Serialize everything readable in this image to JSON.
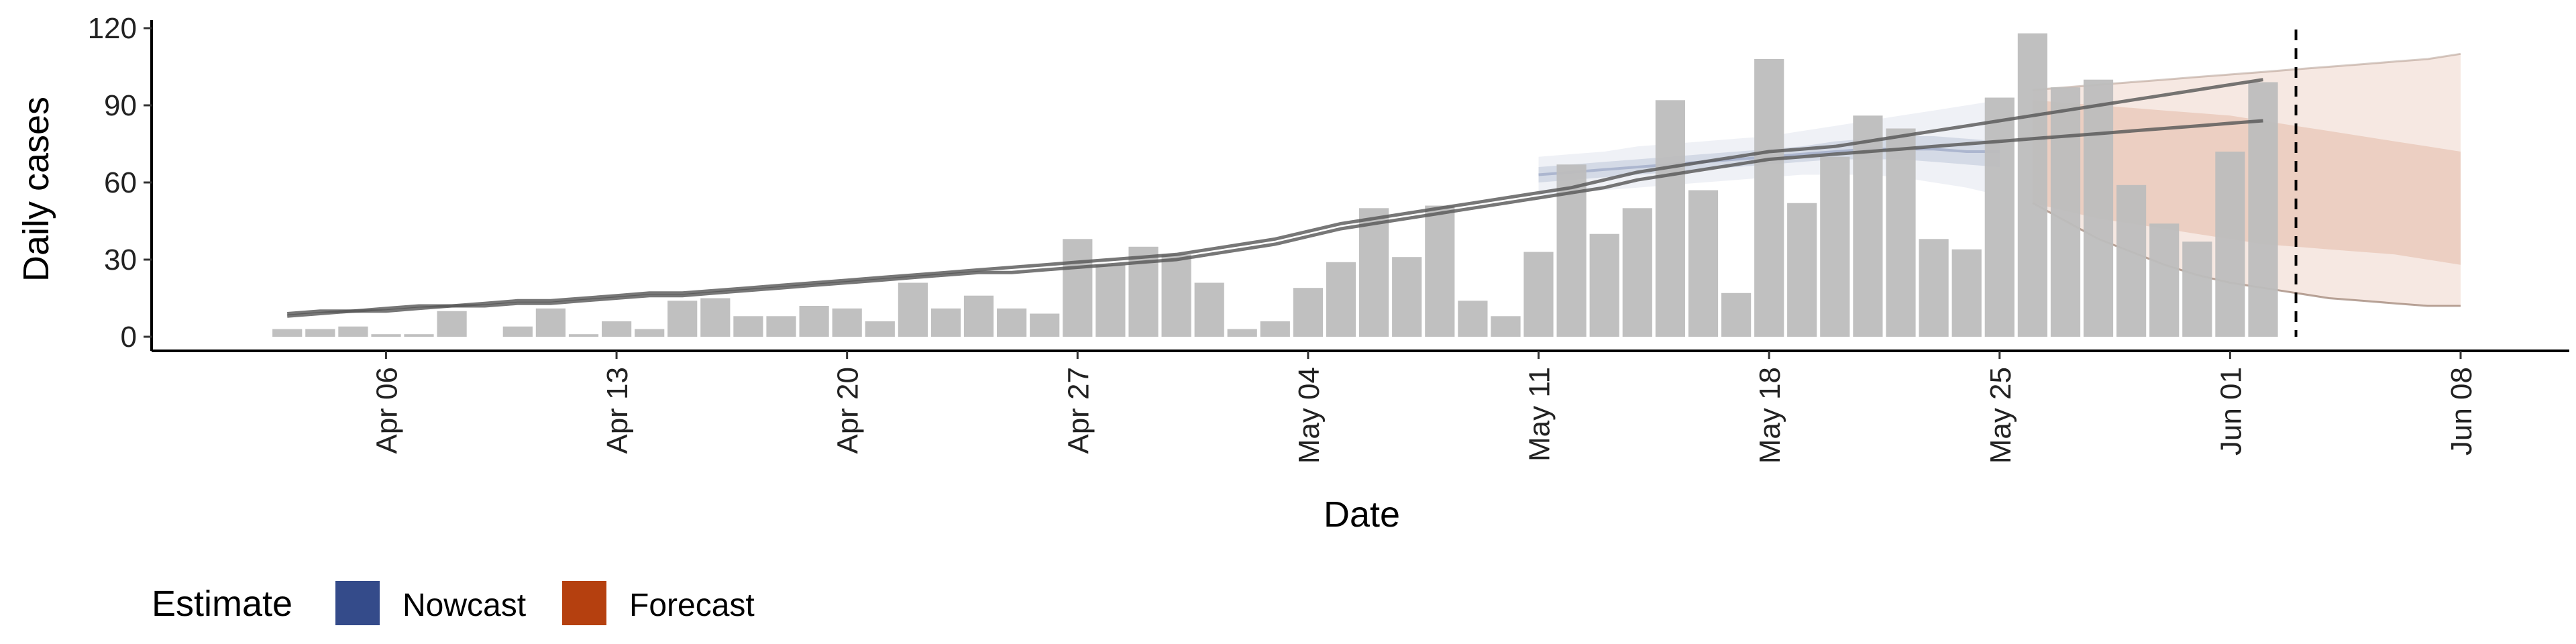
{
  "chart_data": {
    "type": "bar",
    "xlabel": "Date",
    "ylabel": "Daily cases",
    "ylim": [
      0,
      125
    ],
    "x_tick_labels": [
      "Apr 06",
      "Apr 13",
      "Apr 20",
      "Apr 27",
      "May 04",
      "May 11",
      "May 18",
      "May 25",
      "Jun 01",
      "Jun 08"
    ],
    "y_tick_labels": [
      "0",
      "30",
      "60",
      "90",
      "120"
    ],
    "y_ticks": [
      0,
      30,
      60,
      90,
      120
    ],
    "legend": {
      "title": "Estimate",
      "placement": "bottom-left",
      "items": [
        {
          "label": "Nowcast",
          "color": "#344b8a"
        },
        {
          "label": "Forecast",
          "color": "#b5400f"
        }
      ]
    },
    "colors": {
      "bars": "#bdbdbd",
      "nowcast": "#344b8a",
      "forecast": "#b5400f",
      "line": "#555555",
      "axis": "#000000"
    },
    "first_date": "2020-04-01",
    "last_date": "2020-06-08",
    "reference_date": "2020-06-03",
    "bars": {
      "start_date": "2020-04-03",
      "values": [
        3,
        3,
        4,
        1,
        1,
        10,
        null,
        4,
        11,
        1,
        6,
        3,
        14,
        15,
        8,
        8,
        12,
        11,
        6,
        21,
        11,
        16,
        11,
        9,
        38,
        28,
        35,
        32,
        21,
        3,
        6,
        19,
        29,
        50,
        31,
        51,
        14,
        8,
        33,
        67,
        40,
        50,
        92,
        57,
        17,
        108,
        52,
        70,
        86,
        81,
        38,
        34,
        93,
        118,
        97,
        100,
        59,
        44,
        37,
        72,
        99
      ]
    },
    "trend_lines": [
      {
        "start_date": "2020-04-03",
        "values": [
          9,
          10,
          10,
          11,
          12,
          12,
          13,
          14,
          14,
          15,
          16,
          17,
          17,
          18,
          19,
          20,
          21,
          22,
          23,
          24,
          25,
          26,
          27,
          28,
          29,
          30,
          31,
          32,
          34,
          36,
          38,
          41,
          44,
          46,
          48,
          50,
          52,
          54,
          56,
          58,
          61,
          64,
          66,
          68,
          70,
          72,
          73,
          74,
          76,
          78,
          80,
          82,
          84,
          86,
          88,
          90,
          92,
          94,
          96,
          98,
          100
        ]
      },
      {
        "start_date": "2020-04-03",
        "values": [
          8,
          9,
          10,
          10,
          11,
          12,
          12,
          13,
          13,
          14,
          15,
          16,
          16,
          17,
          18,
          19,
          20,
          21,
          22,
          23,
          24,
          25,
          25,
          26,
          27,
          28,
          29,
          30,
          32,
          34,
          36,
          39,
          42,
          44,
          46,
          48,
          50,
          52,
          54,
          56,
          58,
          61,
          63,
          65,
          67,
          69,
          70,
          71,
          72,
          73,
          74,
          75,
          76,
          77,
          78,
          79,
          80,
          81,
          82,
          83,
          84
        ]
      }
    ],
    "nowcast": {
      "start_date": "2020-05-11",
      "median": [
        63,
        64,
        65,
        66,
        67,
        68,
        69,
        70,
        71,
        72,
        73,
        73,
        73,
        72,
        72
      ],
      "inner_lower": [
        60,
        61,
        62,
        63,
        64,
        65,
        66,
        67,
        68,
        69,
        69,
        69,
        68,
        67,
        66
      ],
      "inner_upper": [
        66,
        67,
        68,
        69,
        70,
        71,
        72,
        73,
        74,
        76,
        77,
        78,
        78,
        77,
        76
      ],
      "outer_lower": [
        55,
        56,
        57,
        58,
        59,
        60,
        61,
        62,
        63,
        63,
        63,
        62,
        60,
        58,
        55
      ],
      "outer_upper": [
        70,
        71,
        72,
        74,
        75,
        76,
        77,
        78,
        80,
        82,
        84,
        86,
        88,
        90,
        92
      ]
    },
    "forecast": {
      "start_date": "2020-05-26",
      "median": [
        72,
        71,
        70,
        69,
        68,
        67,
        66,
        65,
        64,
        63,
        62,
        61,
        60,
        59
      ],
      "inner_lower": [
        52,
        49,
        46,
        44,
        42,
        40,
        38,
        36,
        35,
        34,
        33,
        32,
        30,
        28
      ],
      "inner_upper": [
        92,
        91,
        90,
        89,
        88,
        87,
        86,
        84,
        82,
        80,
        78,
        76,
        74,
        72
      ],
      "outer_lower": [
        52,
        45,
        38,
        33,
        28,
        24,
        21,
        19,
        17,
        15,
        14,
        13,
        12,
        12
      ],
      "outer_upper": [
        96,
        97,
        98,
        99,
        100,
        101,
        102,
        103,
        104,
        105,
        106,
        107,
        108,
        110
      ]
    }
  }
}
